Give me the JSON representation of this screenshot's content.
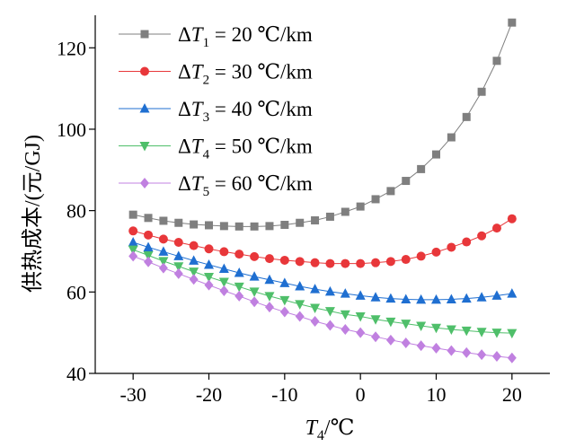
{
  "chart_data": {
    "type": "line",
    "x": [
      -30,
      -28,
      -26,
      -24,
      -22,
      -20,
      -18,
      -16,
      -14,
      -12,
      -10,
      -8,
      -6,
      -4,
      -2,
      0,
      2,
      4,
      6,
      8,
      10,
      12,
      14,
      16,
      18,
      20
    ],
    "xlim": [
      -35,
      25
    ],
    "ylim": [
      40,
      128
    ],
    "xticks": [
      -30,
      -20,
      -10,
      0,
      10,
      20
    ],
    "yticks": [
      40,
      60,
      80,
      100,
      120
    ],
    "ylabel": "供热成本/(元/GJ)",
    "xlabel_var": "T",
    "xlabel_sub": "4",
    "xlabel_unit": "/℃",
    "legend_position": "top-left",
    "grid": false,
    "series": [
      {
        "name_prefix": "ΔT",
        "name_sub": "1",
        "name_suffix": " = 20 ℃/km",
        "marker": "square",
        "color": "#7f7f7f",
        "values": [
          79.0,
          78.2,
          77.5,
          77.0,
          76.6,
          76.4,
          76.2,
          76.1,
          76.1,
          76.2,
          76.5,
          77.0,
          77.6,
          78.5,
          79.7,
          81.0,
          82.8,
          84.8,
          87.3,
          90.2,
          93.8,
          98.0,
          103.0,
          109.2,
          116.8,
          126.2
        ]
      },
      {
        "name_prefix": "ΔT",
        "name_sub": "2",
        "name_suffix": " = 30 ℃/km",
        "marker": "circle",
        "color": "#e8373a",
        "values": [
          75.0,
          74.0,
          73.0,
          72.2,
          71.4,
          70.6,
          69.9,
          69.3,
          68.7,
          68.2,
          67.8,
          67.5,
          67.2,
          67.0,
          67.0,
          67.0,
          67.2,
          67.5,
          68.0,
          68.8,
          69.8,
          71.0,
          72.3,
          73.8,
          75.7,
          78.0
        ]
      },
      {
        "name_prefix": "ΔT",
        "name_sub": "3",
        "name_suffix": " = 40 ℃/km",
        "marker": "triangle-up",
        "color": "#1f6fd1",
        "values": [
          72.2,
          71.0,
          69.9,
          68.8,
          67.7,
          66.7,
          65.7,
          64.7,
          63.8,
          63.0,
          62.2,
          61.4,
          60.7,
          60.1,
          59.6,
          59.1,
          58.7,
          58.4,
          58.2,
          58.1,
          58.1,
          58.2,
          58.4,
          58.7,
          59.1,
          59.6
        ]
      },
      {
        "name_prefix": "ΔT",
        "name_sub": "4",
        "name_suffix": " = 50 ℃/km",
        "marker": "triangle-down",
        "color": "#4fbf6a",
        "values": [
          70.4,
          69.0,
          67.6,
          66.3,
          65.0,
          63.7,
          62.5,
          61.3,
          60.1,
          59.0,
          58.0,
          57.0,
          56.1,
          55.3,
          54.5,
          54.0,
          53.3,
          52.7,
          52.2,
          51.7,
          51.2,
          50.8,
          50.5,
          50.2,
          50.0,
          49.9
        ]
      },
      {
        "name_prefix": "ΔT",
        "name_sub": "5",
        "name_suffix": " = 60 ℃/km",
        "marker": "diamond",
        "color": "#c080e0",
        "values": [
          68.8,
          67.4,
          65.9,
          64.5,
          63.1,
          61.7,
          60.3,
          59.0,
          57.6,
          56.3,
          55.1,
          54.0,
          52.8,
          51.8,
          50.8,
          50.0,
          49.0,
          48.2,
          47.5,
          46.8,
          46.2,
          45.6,
          45.1,
          44.6,
          44.2,
          43.8
        ]
      }
    ]
  }
}
